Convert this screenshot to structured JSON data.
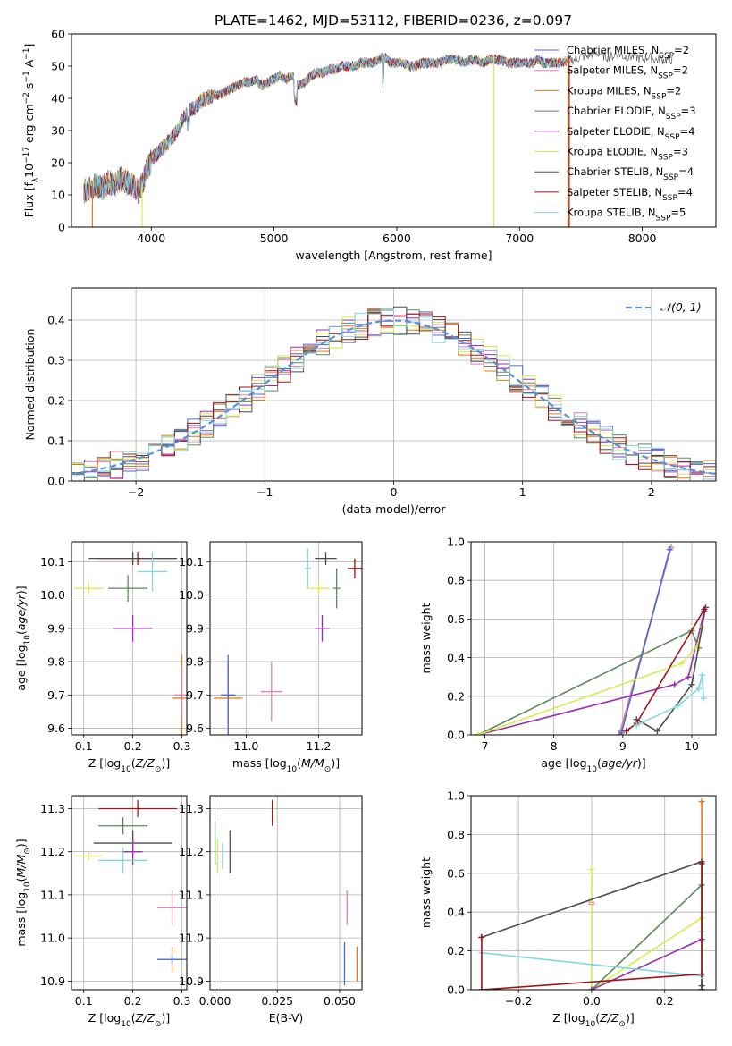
{
  "title": "PLATE=1462, MJD=53112, FIBERID=0236, z=0.097",
  "legend_models": [
    {
      "label": "Chabrier MILES, N",
      "sub": "SSP",
      "suffix": "=2",
      "color": "#4a6bd4"
    },
    {
      "label": "Salpeter MILES, N",
      "sub": "SSP",
      "suffix": "=2",
      "color": "#e57fb1"
    },
    {
      "label": "Kroupa MILES, N",
      "sub": "SSP",
      "suffix": "=2",
      "color": "#e07b1a"
    },
    {
      "label": "Chabrier ELODIE, N",
      "sub": "SSP",
      "suffix": "=3",
      "color": "#5b8a5b"
    },
    {
      "label": "Salpeter ELODIE, N",
      "sub": "SSP",
      "suffix": "=4",
      "color": "#9b30b0"
    },
    {
      "label": "Kroupa ELODIE, N",
      "sub": "SSP",
      "suffix": "=3",
      "color": "#d8ea50"
    },
    {
      "label": "Chabrier STELIB, N",
      "sub": "SSP",
      "suffix": "=4",
      "color": "#4d4d4d"
    },
    {
      "label": "Salpeter STELIB, N",
      "sub": "SSP",
      "suffix": "=4",
      "color": "#a01515"
    },
    {
      "label": "Kroupa STELIB, N",
      "sub": "SSP",
      "suffix": "=5",
      "color": "#7fd8e0"
    }
  ],
  "chart_data": [
    {
      "id": "spectrum",
      "type": "line",
      "xlabel": "wavelength [Angstrom, rest frame]",
      "ylabel": "Flux [f",
      "ylabel_pre": "Flux [f",
      "ylabel_sub": "λ",
      "ylabel_mid": "10",
      "ylabel_sup": "−17",
      "ylabel_post": " erg cm",
      "ylabel_sup2": "−2",
      "ylabel_post2": " s",
      "ylabel_sup3": "−1",
      "ylabel_post3": " A",
      "ylabel_sup4": "−1",
      "ylabel_end": "]",
      "xlim": [
        3350,
        8600
      ],
      "ylim": [
        0,
        60
      ],
      "xticks": [
        4000,
        5000,
        6000,
        7000,
        8000
      ],
      "yticks": [
        0,
        10,
        20,
        30,
        40,
        50,
        60
      ],
      "grid": false,
      "x": [
        3450,
        3500,
        3550,
        3600,
        3650,
        3700,
        3750,
        3800,
        3850,
        3900,
        3950,
        4000,
        4050,
        4100,
        4150,
        4200,
        4250,
        4300,
        4350,
        4400,
        4450,
        4500,
        4550,
        4600,
        4650,
        4700,
        4750,
        4800,
        4850,
        4900,
        4950,
        5000,
        5050,
        5100,
        5150,
        5200,
        5250,
        5300,
        5350,
        5400,
        5450,
        5500,
        5550,
        5600,
        5650,
        5700,
        5750,
        5800,
        5850,
        5900,
        5950,
        6000,
        6050,
        6100,
        6150,
        6200,
        6250,
        6300,
        6350,
        6400,
        6450,
        6500,
        6550,
        6600,
        6650,
        6700,
        6750,
        6800,
        6850,
        6900,
        6950,
        7000,
        7050,
        7100,
        7150,
        7200,
        7250,
        7300,
        7350,
        7400,
        7450,
        7500,
        7550,
        7600,
        7650,
        7700,
        7750,
        7800,
        7850,
        7900,
        7950,
        8000,
        8050,
        8100,
        8150,
        8200,
        8250
      ],
      "y": [
        11,
        12,
        13,
        12,
        14,
        13,
        15,
        14,
        13,
        11,
        16,
        21,
        23,
        25,
        27,
        29,
        33,
        36,
        37,
        39,
        40,
        41,
        41,
        42,
        43,
        44,
        45,
        45,
        46,
        44,
        45,
        46,
        47,
        46,
        47,
        44,
        45,
        47,
        48,
        48,
        49,
        49,
        50,
        50,
        50,
        51,
        51,
        51,
        52,
        53,
        51,
        51,
        51,
        50,
        50,
        51,
        51,
        51,
        51,
        52,
        52,
        52,
        51,
        52,
        52,
        51,
        52,
        52,
        52,
        51,
        51,
        51,
        51,
        51,
        52,
        51,
        51,
        51,
        51,
        52,
        52,
        53,
        53,
        54,
        54,
        53,
        53,
        54,
        53,
        53,
        53,
        52,
        53,
        52,
        52,
        52,
        52
      ]
    },
    {
      "id": "residuals",
      "type": "line",
      "xlabel": "(data-model)/error",
      "ylabel": "Normed distribution",
      "xlim": [
        -2.5,
        2.5
      ],
      "ylim": [
        0,
        0.48
      ],
      "xticks": [
        -2,
        -1,
        0,
        1,
        2
      ],
      "xticklabels": [
        "−2",
        "−1",
        "0",
        "1",
        "2"
      ],
      "yticks": [
        0,
        0.1,
        0.2,
        0.3,
        0.4
      ],
      "yticklabels": [
        "0.0",
        "0.1",
        "0.2",
        "0.3",
        "0.4"
      ],
      "grid": true,
      "legend": "𝒩(0, 1)",
      "gauss_color": "#5b8fd6"
    },
    {
      "id": "age-vs-Z",
      "type": "scatter",
      "xlabel": "Z [log",
      "xlabel_pre": "Z [log",
      "xlabel_sub": "10",
      "xlabel_post": "(Z/Z",
      "xlabel_sub2": "⊙",
      "xlabel_end": ")]",
      "ylabel_pre": "age  [log",
      "ylabel_sub": "10",
      "ylabel_post": "(age/yr)]",
      "xlim": [
        0.075,
        0.31
      ],
      "ylim": [
        9.58,
        10.16
      ],
      "xticks": [
        0.1,
        0.2,
        0.3
      ],
      "xticklabels": [
        "0.1",
        "0.2",
        "0.3"
      ],
      "yticks": [
        9.6,
        9.7,
        9.8,
        9.9,
        10.0,
        10.1
      ],
      "yticklabels": [
        "9.6",
        "9.7",
        "9.8",
        "9.9",
        "10.0",
        "10.1"
      ],
      "points": [
        {
          "x": 0.3,
          "xe": 0.02,
          "y": 9.69,
          "ye": 0.13,
          "c": "#e07b1a"
        },
        {
          "x": 0.3,
          "xe": 0.015,
          "y": 9.7,
          "ye": 0.08,
          "c": "#e57fb1"
        },
        {
          "x": 0.21,
          "xe": 0.08,
          "y": 10.11,
          "ye": 0.02,
          "c": "#a01515"
        },
        {
          "x": 0.2,
          "xe": 0.09,
          "y": 10.11,
          "ye": 0.02,
          "c": "#4d4d4d"
        },
        {
          "x": 0.24,
          "xe": 0.03,
          "y": 10.07,
          "ye": 0.06,
          "c": "#7fd8e0"
        },
        {
          "x": 0.19,
          "xe": 0.04,
          "y": 10.02,
          "ye": 0.04,
          "c": "#5b8a5b"
        },
        {
          "x": 0.11,
          "xe": 0.03,
          "y": 10.02,
          "ye": 0.02,
          "c": "#d8ea50"
        },
        {
          "x": 0.2,
          "xe": 0.04,
          "y": 9.9,
          "ye": 0.04,
          "c": "#9b30b0"
        }
      ]
    },
    {
      "id": "age-vs-mass",
      "type": "scatter",
      "xlabel_pre": "mass [log",
      "xlabel_sub": "10",
      "xlabel_post": "(M/M",
      "xlabel_sub2": "⊙",
      "xlabel_end": ")]",
      "xlim": [
        10.9,
        11.32
      ],
      "ylim": [
        9.58,
        10.16
      ],
      "xticks": [
        11.0,
        11.2
      ],
      "xticklabels": [
        "11.0",
        "11.2"
      ],
      "yticks": [
        9.6,
        9.7,
        9.8,
        9.9,
        10.0,
        10.1
      ],
      "yticklabels": [
        "9.6",
        "9.7",
        "9.8",
        "9.9",
        "10.0",
        "10.1"
      ],
      "points": [
        {
          "x": 10.95,
          "xe": 0.04,
          "y": 9.69,
          "ye": 0.11,
          "c": "#e07b1a"
        },
        {
          "x": 10.95,
          "xe": 0.02,
          "y": 9.7,
          "ye": 0.12,
          "c": "#4a6bd4"
        },
        {
          "x": 11.07,
          "xe": 0.03,
          "y": 9.71,
          "ye": 0.09,
          "c": "#e57fb1"
        },
        {
          "x": 11.3,
          "xe": 0.02,
          "y": 10.08,
          "ye": 0.03,
          "c": "#a01515"
        },
        {
          "x": 11.22,
          "xe": 0.03,
          "y": 10.11,
          "ye": 0.02,
          "c": "#4d4d4d"
        },
        {
          "x": 11.17,
          "xe": 0.01,
          "y": 10.08,
          "ye": 0.06,
          "c": "#7fd8e0"
        },
        {
          "x": 11.25,
          "xe": 0.01,
          "y": 10.02,
          "ye": 0.06,
          "c": "#5b8a5b"
        },
        {
          "x": 11.2,
          "xe": 0.03,
          "y": 10.02,
          "ye": 0.02,
          "c": "#d8ea50"
        },
        {
          "x": 11.21,
          "xe": 0.02,
          "y": 9.9,
          "ye": 0.04,
          "c": "#9b30b0"
        }
      ]
    },
    {
      "id": "weight-vs-age",
      "type": "line",
      "xlabel_pre": "age  [log",
      "xlabel_sub": "10",
      "xlabel_post": "(age/yr)]",
      "ylabel": "mass weight",
      "xlim": [
        6.8,
        10.35
      ],
      "ylim": [
        0,
        1
      ],
      "xticks": [
        7,
        8,
        9,
        10
      ],
      "xticklabels": [
        "7",
        "8",
        "9",
        "10"
      ],
      "yticks": [
        0,
        0.2,
        0.4,
        0.6,
        0.8,
        1.0
      ],
      "yticklabels": [
        "0.0",
        "0.2",
        "0.4",
        "0.6",
        "0.8",
        "1.0"
      ],
      "series": [
        {
          "c": "#e07b1a",
          "x": [
            8.95,
            9.7
          ],
          "y": [
            0.0,
            0.97
          ]
        },
        {
          "c": "#e57fb1",
          "x": [
            8.97,
            9.7
          ],
          "y": [
            0.02,
            0.97
          ]
        },
        {
          "c": "#4a6bd4",
          "x": [
            8.98,
            9.68
          ],
          "y": [
            0.01,
            0.96
          ]
        },
        {
          "c": "#5b8a5b",
          "x": [
            6.9,
            10.0,
            10.1
          ],
          "y": [
            0.0,
            0.54,
            0.45
          ]
        },
        {
          "c": "#9b30b0",
          "x": [
            6.9,
            9.75,
            9.95,
            10.18
          ],
          "y": [
            0.0,
            0.26,
            0.3,
            0.64
          ]
        },
        {
          "c": "#d8ea50",
          "x": [
            6.9,
            9.85,
            10.08,
            10.15
          ],
          "y": [
            0.0,
            0.37,
            0.46,
            0.56
          ]
        },
        {
          "c": "#4d4d4d",
          "x": [
            9.2,
            9.5,
            10.0,
            10.2
          ],
          "y": [
            0.08,
            0.02,
            0.26,
            0.66
          ]
        },
        {
          "c": "#a01515",
          "x": [
            9.05,
            9.2,
            10.18
          ],
          "y": [
            0.02,
            0.06,
            0.65
          ]
        },
        {
          "c": "#7fd8e0",
          "x": [
            9.2,
            9.8,
            10.1,
            10.15,
            10.17
          ],
          "y": [
            0.05,
            0.15,
            0.24,
            0.31,
            0.19
          ]
        }
      ]
    },
    {
      "id": "mass-vs-Z",
      "type": "scatter",
      "xlabel_pre": "Z [log",
      "xlabel_sub": "10",
      "xlabel_post": "(Z/Z",
      "xlabel_sub2": "⊙",
      "xlabel_end": ")]",
      "ylabel_pre": "mass [log",
      "ylabel_sub": "10",
      "ylabel_post": "(M/M",
      "ylabel_sub2": "⊙",
      "ylabel_end": ")]",
      "xlim": [
        0.075,
        0.31
      ],
      "ylim": [
        10.88,
        11.33
      ],
      "xticks": [
        0.1,
        0.2,
        0.3
      ],
      "xticklabels": [
        "0.1",
        "0.2",
        "0.3"
      ],
      "yticks": [
        10.9,
        11.0,
        11.1,
        11.2,
        11.3
      ],
      "yticklabels": [
        "10.9",
        "11.0",
        "11.1",
        "11.2",
        "11.3"
      ],
      "points": [
        {
          "x": 0.21,
          "xe": 0.08,
          "y": 11.3,
          "ye": 0.02,
          "c": "#a01515"
        },
        {
          "x": 0.18,
          "xe": 0.05,
          "y": 11.26,
          "ye": 0.02,
          "c": "#5b8a5b"
        },
        {
          "x": 0.2,
          "xe": 0.08,
          "y": 11.22,
          "ye": 0.03,
          "c": "#4d4d4d"
        },
        {
          "x": 0.2,
          "xe": 0.02,
          "y": 11.2,
          "ye": 0.03,
          "c": "#9b30b0"
        },
        {
          "x": 0.11,
          "xe": 0.03,
          "y": 11.19,
          "ye": 0.01,
          "c": "#d8ea50"
        },
        {
          "x": 0.18,
          "xe": 0.05,
          "y": 11.18,
          "ye": 0.03,
          "c": "#7fd8e0"
        },
        {
          "x": 0.28,
          "xe": 0.03,
          "y": 11.07,
          "ye": 0.04,
          "c": "#e57fb1"
        },
        {
          "x": 0.28,
          "xe": 0.03,
          "y": 10.95,
          "ye": 0.03,
          "c": "#e07b1a"
        },
        {
          "x": 0.28,
          "xe": 0.03,
          "y": 10.95,
          "ye": 0.01,
          "c": "#4a6bd4"
        }
      ]
    },
    {
      "id": "mass-vs-EBV",
      "type": "scatter",
      "xlabel": "E(B-V)",
      "xlim": [
        -0.002,
        0.059
      ],
      "ylim": [
        10.88,
        11.33
      ],
      "xticks": [
        0.0,
        0.025,
        0.05
      ],
      "xticklabels": [
        "0.000",
        "0.025",
        "0.050"
      ],
      "yticks": [
        10.9,
        11.0,
        11.1,
        11.2,
        11.3
      ],
      "yticklabels": [
        "10.9",
        "11.0",
        "11.1",
        "11.2",
        "11.3"
      ],
      "points": [
        {
          "x": 0.023,
          "xe": 0,
          "y": 11.29,
          "ye": 0.03,
          "c": "#a01515"
        },
        {
          "x": 0.0,
          "xe": 0,
          "y": 11.22,
          "ye": 0.05,
          "c": "#5b8a5b"
        },
        {
          "x": 0.006,
          "xe": 0,
          "y": 11.2,
          "ye": 0.05,
          "c": "#4d4d4d"
        },
        {
          "x": 0.003,
          "xe": 0,
          "y": 11.19,
          "ye": 0.03,
          "c": "#7fd8e0"
        },
        {
          "x": 0.001,
          "xe": 0,
          "y": 11.19,
          "ye": 0.04,
          "c": "#d8ea50"
        },
        {
          "x": 0.053,
          "xe": 0,
          "y": 11.07,
          "ye": 0.04,
          "c": "#e57fb1"
        },
        {
          "x": 0.057,
          "xe": 0,
          "y": 10.94,
          "ye": 0.04,
          "c": "#e07b1a"
        },
        {
          "x": 0.052,
          "xe": 0,
          "y": 10.94,
          "ye": 0.05,
          "c": "#4a6bd4"
        }
      ]
    },
    {
      "id": "weight-vs-Z",
      "type": "line",
      "xlabel_pre": "Z [log",
      "xlabel_sub": "10",
      "xlabel_post": "(Z/Z",
      "xlabel_sub2": "⊙",
      "xlabel_end": ")]",
      "ylabel": "mass weight",
      "xlim": [
        -0.33,
        0.34
      ],
      "ylim": [
        0,
        1
      ],
      "xticks": [
        -0.2,
        0.0,
        0.2
      ],
      "xticklabels": [
        "−0.2",
        "0.0",
        "0.2"
      ],
      "yticks": [
        0,
        0.2,
        0.4,
        0.6,
        0.8,
        1.0
      ],
      "yticklabels": [
        "0.0",
        "0.2",
        "0.4",
        "0.6",
        "0.8",
        "1.0"
      ],
      "series": [
        {
          "c": "#e07b1a",
          "x": [
            0.301,
            0.301
          ],
          "y": [
            0.0,
            0.97
          ]
        },
        {
          "c": "#e57fb1",
          "x": [
            0.0,
            0.0
          ],
          "y": [
            0.45,
            0.44
          ]
        },
        {
          "c": "#d8ea50",
          "x": [
            0.0,
            0.0,
            0.301
          ],
          "y": [
            0.62,
            0.0,
            0.37
          ]
        },
        {
          "c": "#5b8a5b",
          "x": [
            0.0,
            0.301,
            0.301
          ],
          "y": [
            0.0,
            0.54,
            0.0
          ]
        },
        {
          "c": "#9b30b0",
          "x": [
            0.0,
            0.301,
            0.301
          ],
          "y": [
            0.0,
            0.26,
            0.0
          ]
        },
        {
          "c": "#4d4d4d",
          "x": [
            -0.301,
            0.301,
            0.301
          ],
          "y": [
            0.27,
            0.66,
            0.02
          ]
        },
        {
          "c": "#7fd8e0",
          "x": [
            -0.301,
            0.301,
            0.301
          ],
          "y": [
            0.19,
            0.07,
            0.3
          ]
        },
        {
          "c": "#a01515",
          "x": [
            -0.301,
            -0.301,
            0.301,
            0.301
          ],
          "y": [
            0.27,
            0.0,
            0.08,
            0.65
          ]
        }
      ]
    }
  ]
}
